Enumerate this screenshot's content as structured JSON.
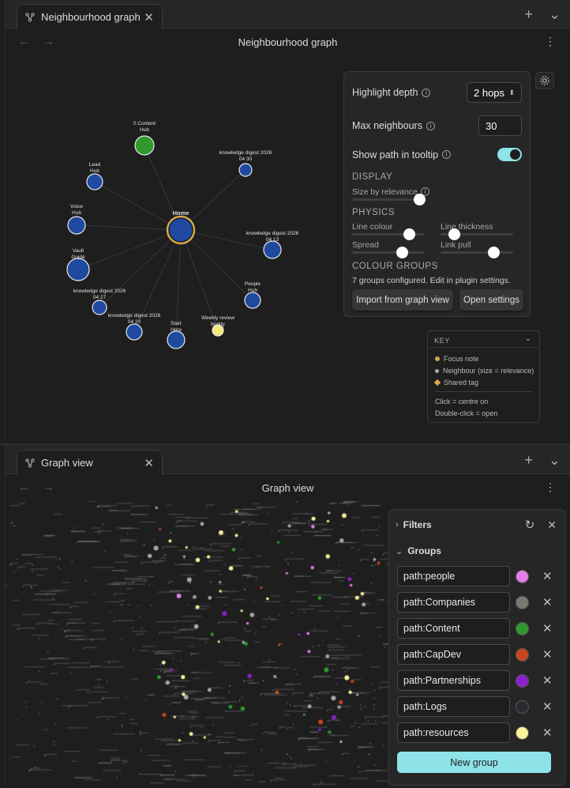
{
  "top_pane": {
    "tab_title": "Neighbourhood graph",
    "view_title": "Neighbourhood graph",
    "nodes": [
      {
        "label_1": "0.Content",
        "label_2": "Hub",
        "color": "#2e9a2e"
      },
      {
        "label_1": "Lead",
        "label_2": "Hub",
        "color": "#1f4aa0"
      },
      {
        "label_1": "knowledge digest 2026",
        "label_2": "04 30",
        "color": "#1f4aa0"
      },
      {
        "label_1": "Voice",
        "label_2": "Hub",
        "color": "#1f4aa0"
      },
      {
        "label_1": "Home",
        "label_2": "",
        "color": "#1f4aa0"
      },
      {
        "label_1": "knowledge digest 2026",
        "label_2": "04 13",
        "color": "#1f4aa0"
      },
      {
        "label_1": "Vault",
        "label_2": "Guide",
        "color": "#1f4aa0"
      },
      {
        "label_1": "People",
        "label_2": "Hub",
        "color": "#1f4aa0"
      },
      {
        "label_1": "knowledge digest 2026",
        "label_2": "04 27",
        "color": "#1f4aa0"
      },
      {
        "label_1": "knowledge digest 2026",
        "label_2": "04 20",
        "color": "#1f4aa0"
      },
      {
        "label_1": "Start",
        "label_2": "Here",
        "color": "#1f4aa0"
      },
      {
        "label_1": "Weekly review",
        "label_2": "buddy",
        "color": "#f3ea7a"
      }
    ],
    "settings": {
      "highlight_depth_label": "Highlight depth",
      "highlight_depth_value": "2 hops",
      "max_neighbours_label": "Max neighbours",
      "max_neighbours_value": "30",
      "show_path_label": "Show path in tooltip",
      "show_path_on": true,
      "display_title": "DISPLAY",
      "size_by_relevance_label": "Size by relevance",
      "physics_title": "PHYSICS",
      "line_colour_label": "Line colour",
      "line_thickness_label": "Line thickness",
      "spread_label": "Spread",
      "link_pull_label": "Link pull",
      "colour_groups_title": "COLOUR GROUPS",
      "colour_groups_text": "7 groups configured. Edit in plugin settings.",
      "import_button": "Import from graph view",
      "open_settings_button": "Open settings"
    },
    "key": {
      "title": "KEY",
      "focus": "Focus note",
      "neighbour": "Neighbour (size = relevance)",
      "shared_tag": "Shared tag",
      "click": "Click = centre on",
      "dblclick": "Double-click = open"
    }
  },
  "bottom_pane": {
    "tab_title": "Graph view",
    "view_title": "Graph view",
    "filters_label": "Filters",
    "groups_label": "Groups",
    "groups": [
      {
        "query": "path:people",
        "color": "#e27ee7"
      },
      {
        "query": "path:Companies",
        "color": "#7a7a70"
      },
      {
        "query": "path:Content",
        "color": "#2e9a2e"
      },
      {
        "query": "path:CapDev",
        "color": "#c9461f"
      },
      {
        "query": "path:Partnerships",
        "color": "#8b22c9"
      },
      {
        "query": "path:Logs",
        "color": "#2a2a30"
      },
      {
        "query": "path:resources",
        "color": "#fbf49a"
      }
    ],
    "new_group_button": "New group"
  }
}
